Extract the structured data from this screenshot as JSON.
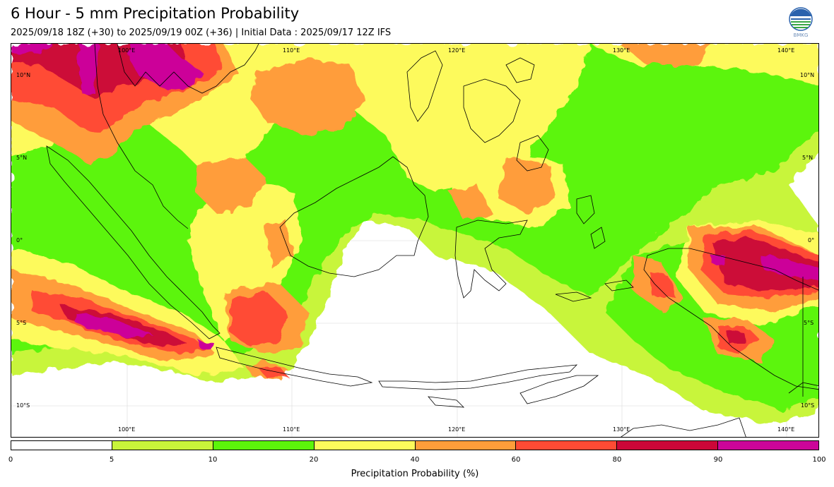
{
  "title": "6 Hour - 5 mm Precipitation Probability",
  "subtitle": "2025/09/18 18Z (+30) to 2025/09/19 00Z (+36) | Initial Data : 2025/09/17 12Z IFS",
  "logo": {
    "text": "BMKG",
    "icon": "bmkg-logo-icon"
  },
  "map": {
    "lon_labels": [
      "100°E",
      "110°E",
      "120°E",
      "130°E",
      "140°E"
    ],
    "lat_labels": [
      "10°N",
      "5°N",
      "0°",
      "5°S",
      "10°S"
    ]
  },
  "colorbar": {
    "levels": [
      "0",
      "5",
      "10",
      "20",
      "40",
      "60",
      "80",
      "90",
      "100"
    ],
    "colors": [
      "#ffffff",
      "#c8f53a",
      "#5cf50a",
      "#fdfa5b",
      "#ff9d3a",
      "#ff4b34",
      "#cc0738",
      "#cc0599"
    ],
    "label": "Precipitation Probability (%)"
  }
}
